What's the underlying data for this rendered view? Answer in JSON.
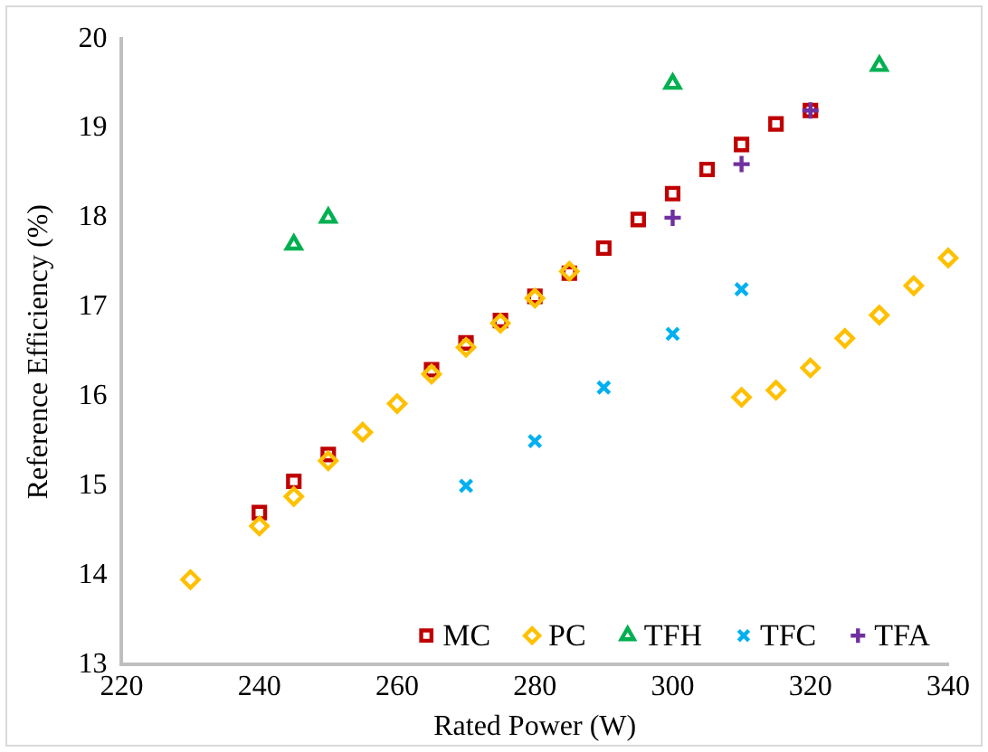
{
  "chart_data": {
    "type": "scatter",
    "xlabel": "Rated Power (W)",
    "ylabel": "Reference Efficiency (%)",
    "xlim": [
      220,
      340
    ],
    "xticks": [
      220,
      240,
      260,
      280,
      300,
      320,
      340
    ],
    "ylim": [
      13,
      20
    ],
    "yticks": [
      13,
      14,
      15,
      16,
      17,
      18,
      19,
      20
    ],
    "grid": false,
    "legend": "bottom right",
    "series": [
      {
        "name": "MC",
        "color": "#c00000",
        "marker": "square",
        "x": [
          240,
          245,
          250,
          265,
          270,
          275,
          280,
          285,
          290,
          295,
          300,
          305,
          310,
          315,
          320
        ],
        "values": [
          14.7,
          15.05,
          15.35,
          16.3,
          16.6,
          16.85,
          17.12,
          17.38,
          17.66,
          17.98,
          18.27,
          18.54,
          18.82,
          19.05,
          19.2
        ]
      },
      {
        "name": "PC",
        "color": "#ffc000",
        "marker": "diamond",
        "x": [
          230,
          240,
          245,
          250,
          255,
          260,
          265,
          270,
          275,
          280,
          285,
          310,
          315,
          320,
          325,
          330,
          335,
          340
        ],
        "values": [
          13.95,
          14.55,
          14.88,
          15.28,
          15.6,
          15.92,
          16.25,
          16.55,
          16.82,
          17.1,
          17.4,
          15.99,
          16.07,
          16.32,
          16.65,
          16.91,
          17.24,
          17.55
        ]
      },
      {
        "name": "TFH",
        "color": "#00b050",
        "marker": "triangle",
        "x": [
          245,
          250,
          300,
          330
        ],
        "values": [
          17.7,
          18.0,
          19.5,
          19.7
        ]
      },
      {
        "name": "TFC",
        "color": "#00b0f0",
        "marker": "cross",
        "x": [
          270,
          280,
          290,
          300,
          310
        ],
        "values": [
          15.0,
          15.5,
          16.1,
          16.7,
          17.2
        ]
      },
      {
        "name": "TFA",
        "color": "#7030a0",
        "marker": "plus",
        "x": [
          300,
          310,
          320
        ],
        "values": [
          18.0,
          18.6,
          19.2
        ]
      }
    ]
  }
}
